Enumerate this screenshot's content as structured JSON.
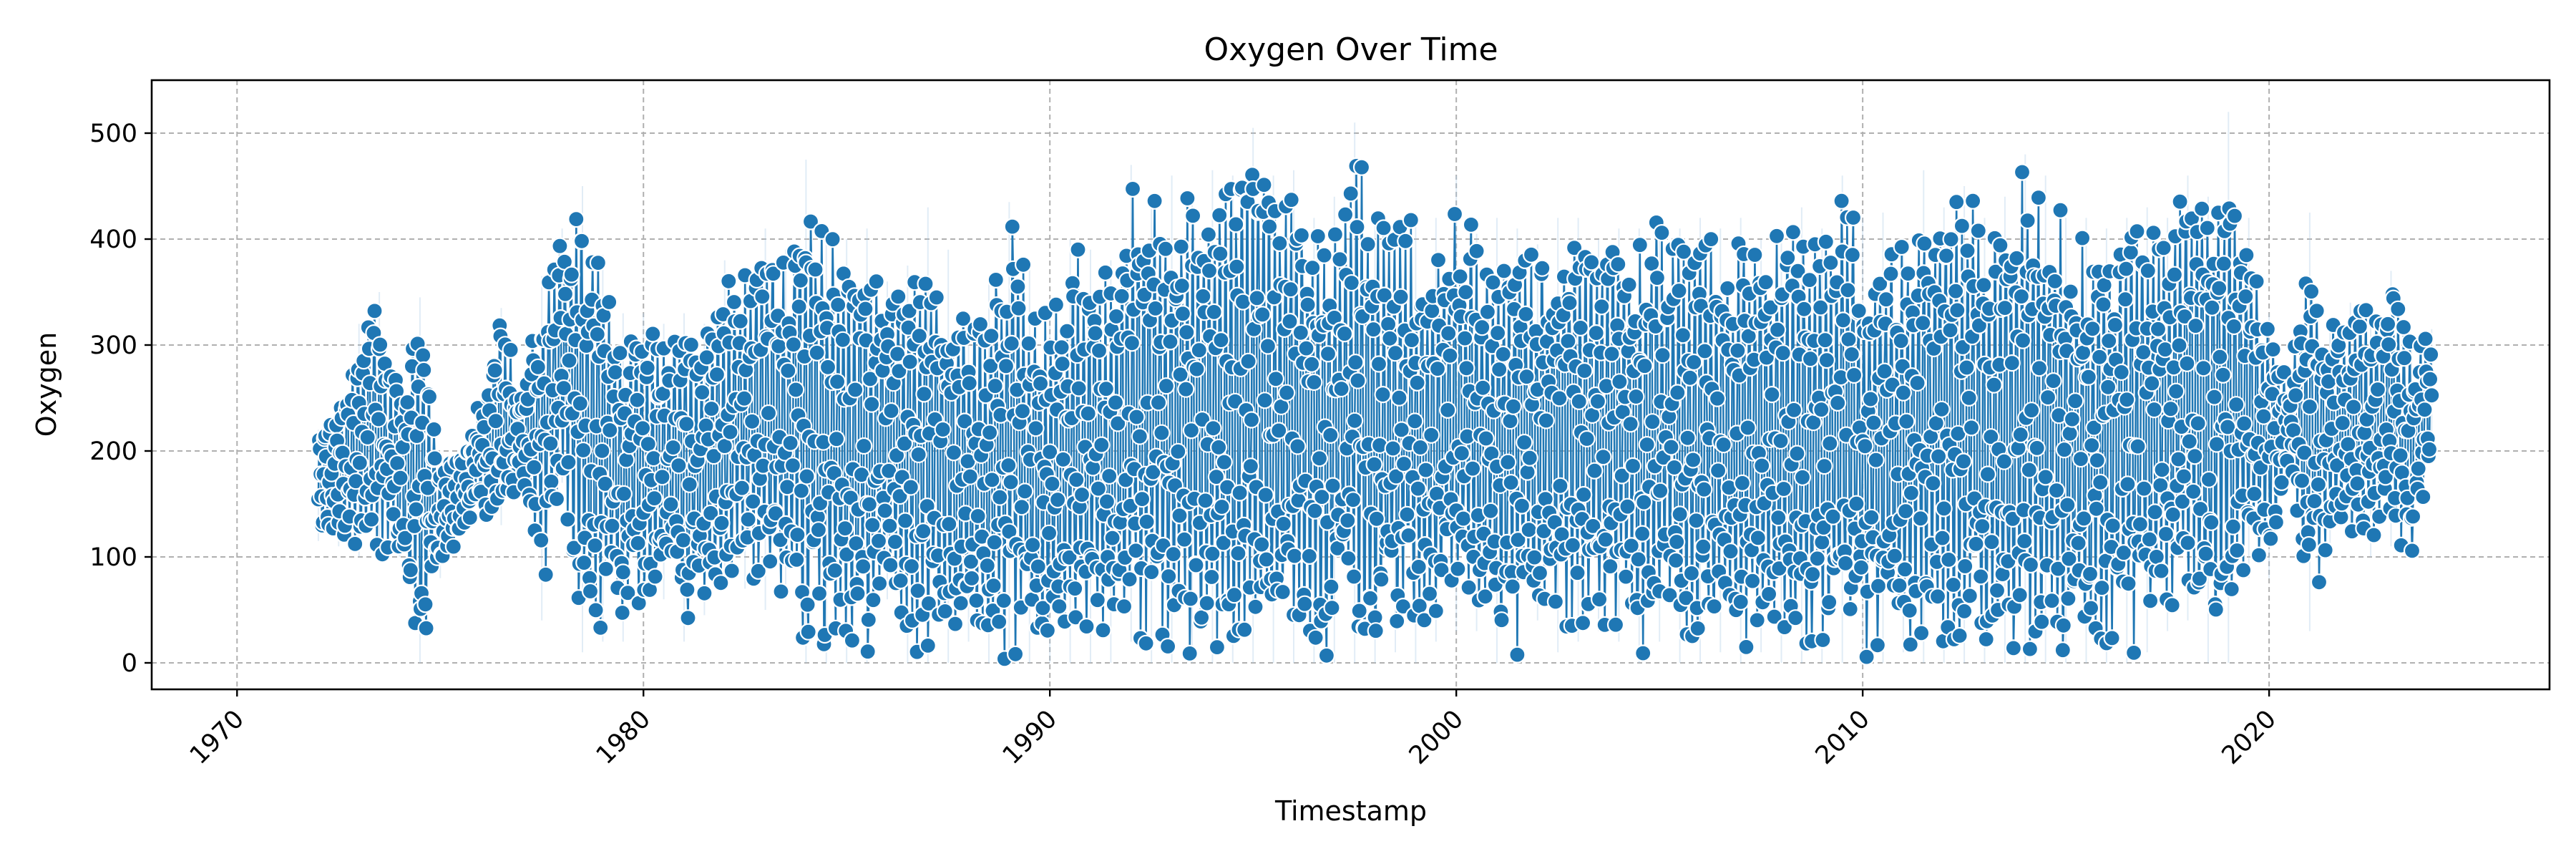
{
  "chart_data": {
    "type": "line",
    "title": "Oxygen Over Time",
    "xlabel": "Timestamp",
    "ylabel": "Oxygen",
    "xlim": [
      1967.9,
      2026.9
    ],
    "ylim": [
      -25,
      550
    ],
    "x_ticks": [
      "1970",
      "1980",
      "1990",
      "2000",
      "2010",
      "2020"
    ],
    "y_ticks": [
      "0",
      "100",
      "200",
      "300",
      "400",
      "500"
    ],
    "grid": true,
    "color": "#1f77b4",
    "ci_color": "#a8c8e6",
    "marker": "circle",
    "series": [
      {
        "envelope": [
          {
            "x": 1972.0,
            "low": 115,
            "high": 220
          },
          {
            "x": 1972.5,
            "low": 110,
            "high": 245
          },
          {
            "x": 1973.0,
            "low": 100,
            "high": 320
          },
          {
            "x": 1973.5,
            "low": 95,
            "high": 350
          },
          {
            "x": 1974.0,
            "low": 100,
            "high": 260
          },
          {
            "x": 1974.5,
            "low": 0,
            "high": 345
          },
          {
            "x": 1975.0,
            "low": 80,
            "high": 185
          },
          {
            "x": 1975.5,
            "low": 120,
            "high": 200
          },
          {
            "x": 1976.0,
            "low": 140,
            "high": 250
          },
          {
            "x": 1976.5,
            "low": 130,
            "high": 335
          },
          {
            "x": 1977.0,
            "low": 175,
            "high": 250
          },
          {
            "x": 1977.5,
            "low": 40,
            "high": 365
          },
          {
            "x": 1978.0,
            "low": 170,
            "high": 410
          },
          {
            "x": 1978.5,
            "low": 10,
            "high": 450
          },
          {
            "x": 1979.0,
            "low": 20,
            "high": 385
          },
          {
            "x": 1979.5,
            "low": 20,
            "high": 330
          },
          {
            "x": 1980.0,
            "low": 60,
            "high": 330
          },
          {
            "x": 1980.5,
            "low": 60,
            "high": 320
          },
          {
            "x": 1981.0,
            "low": 20,
            "high": 330
          },
          {
            "x": 1981.5,
            "low": 45,
            "high": 320
          },
          {
            "x": 1982.0,
            "low": 70,
            "high": 380
          },
          {
            "x": 1982.5,
            "low": 70,
            "high": 370
          },
          {
            "x": 1983.0,
            "low": 50,
            "high": 410
          },
          {
            "x": 1983.5,
            "low": 60,
            "high": 390
          },
          {
            "x": 1984.0,
            "low": 0,
            "high": 475
          },
          {
            "x": 1984.5,
            "low": 0,
            "high": 410
          },
          {
            "x": 1985.0,
            "low": 0,
            "high": 400
          },
          {
            "x": 1985.5,
            "low": 0,
            "high": 410
          },
          {
            "x": 1986.0,
            "low": 60,
            "high": 360
          },
          {
            "x": 1986.5,
            "low": 0,
            "high": 375
          },
          {
            "x": 1987.0,
            "low": 0,
            "high": 430
          },
          {
            "x": 1987.5,
            "low": 0,
            "high": 390
          },
          {
            "x": 1988.0,
            "low": 20,
            "high": 330
          },
          {
            "x": 1988.5,
            "low": 0,
            "high": 360
          },
          {
            "x": 1989.0,
            "low": 0,
            "high": 435
          },
          {
            "x": 1989.5,
            "low": 0,
            "high": 380
          },
          {
            "x": 1990.0,
            "low": 0,
            "high": 330
          },
          {
            "x": 1990.5,
            "low": 0,
            "high": 400
          },
          {
            "x": 1991.0,
            "low": 0,
            "high": 390
          },
          {
            "x": 1991.5,
            "low": 0,
            "high": 380
          },
          {
            "x": 1992.0,
            "low": 20,
            "high": 470
          },
          {
            "x": 1992.5,
            "low": 0,
            "high": 440
          },
          {
            "x": 1993.0,
            "low": 0,
            "high": 460
          },
          {
            "x": 1993.5,
            "low": 0,
            "high": 440
          },
          {
            "x": 1994.0,
            "low": 0,
            "high": 465
          },
          {
            "x": 1994.5,
            "low": 0,
            "high": 460
          },
          {
            "x": 1995.0,
            "low": 0,
            "high": 505
          },
          {
            "x": 1995.5,
            "low": 0,
            "high": 460
          },
          {
            "x": 1996.0,
            "low": 0,
            "high": 465
          },
          {
            "x": 1996.5,
            "low": 0,
            "high": 420
          },
          {
            "x": 1997.0,
            "low": 0,
            "high": 440
          },
          {
            "x": 1997.5,
            "low": 0,
            "high": 510
          },
          {
            "x": 1998.0,
            "low": 0,
            "high": 425
          },
          {
            "x": 1998.5,
            "low": 10,
            "high": 410
          },
          {
            "x": 1999.0,
            "low": 0,
            "high": 425
          },
          {
            "x": 1999.5,
            "low": 20,
            "high": 420
          },
          {
            "x": 2000.0,
            "low": 30,
            "high": 460
          },
          {
            "x": 2000.5,
            "low": 30,
            "high": 405
          },
          {
            "x": 2001.0,
            "low": 0,
            "high": 420
          },
          {
            "x": 2001.5,
            "low": 0,
            "high": 410
          },
          {
            "x": 2002.0,
            "low": 40,
            "high": 395
          },
          {
            "x": 2002.5,
            "low": 10,
            "high": 420
          },
          {
            "x": 2003.0,
            "low": 20,
            "high": 420
          },
          {
            "x": 2003.5,
            "low": 30,
            "high": 400
          },
          {
            "x": 2004.0,
            "low": 20,
            "high": 410
          },
          {
            "x": 2004.5,
            "low": 0,
            "high": 410
          },
          {
            "x": 2005.0,
            "low": 20,
            "high": 420
          },
          {
            "x": 2005.5,
            "low": 0,
            "high": 410
          },
          {
            "x": 2006.0,
            "low": 0,
            "high": 420
          },
          {
            "x": 2006.5,
            "low": 10,
            "high": 410
          },
          {
            "x": 2007.0,
            "low": 0,
            "high": 420
          },
          {
            "x": 2007.5,
            "low": 10,
            "high": 400
          },
          {
            "x": 2008.0,
            "low": 0,
            "high": 410
          },
          {
            "x": 2008.5,
            "low": 0,
            "high": 430
          },
          {
            "x": 2009.0,
            "low": 0,
            "high": 410
          },
          {
            "x": 2009.5,
            "low": 0,
            "high": 460
          },
          {
            "x": 2010.0,
            "low": 0,
            "high": 420
          },
          {
            "x": 2010.5,
            "low": 0,
            "high": 425
          },
          {
            "x": 2011.0,
            "low": 10,
            "high": 400
          },
          {
            "x": 2011.5,
            "low": 0,
            "high": 465
          },
          {
            "x": 2012.0,
            "low": 0,
            "high": 430
          },
          {
            "x": 2012.5,
            "low": 0,
            "high": 450
          },
          {
            "x": 2013.0,
            "low": 0,
            "high": 420
          },
          {
            "x": 2013.5,
            "low": 0,
            "high": 440
          },
          {
            "x": 2014.0,
            "low": 0,
            "high": 480
          },
          {
            "x": 2014.5,
            "low": 0,
            "high": 460
          },
          {
            "x": 2015.0,
            "low": 0,
            "high": 420
          },
          {
            "x": 2015.5,
            "low": 0,
            "high": 420
          },
          {
            "x": 2016.0,
            "low": 0,
            "high": 410
          },
          {
            "x": 2016.5,
            "low": 0,
            "high": 420
          },
          {
            "x": 2017.0,
            "low": 10,
            "high": 430
          },
          {
            "x": 2017.5,
            "low": 30,
            "high": 420
          },
          {
            "x": 2018.0,
            "low": 40,
            "high": 460
          },
          {
            "x": 2018.5,
            "low": 0,
            "high": 440
          },
          {
            "x": 2019.0,
            "low": 0,
            "high": 520
          },
          {
            "x": 2019.5,
            "low": 80,
            "high": 420
          },
          {
            "x": 2020.0,
            "low": 80,
            "high": 330
          },
          {
            "x": 2020.5,
            "low": 200,
            "high": 260
          },
          {
            "x": 2021.0,
            "low": 30,
            "high": 425
          },
          {
            "x": 2021.5,
            "low": 100,
            "high": 320
          },
          {
            "x": 2022.0,
            "low": 120,
            "high": 340
          },
          {
            "x": 2022.5,
            "low": 100,
            "high": 340
          },
          {
            "x": 2023.0,
            "low": 110,
            "high": 370
          },
          {
            "x": 2023.5,
            "low": 100,
            "high": 310
          },
          {
            "x": 2024.0,
            "low": 190,
            "high": 315
          }
        ]
      }
    ]
  }
}
